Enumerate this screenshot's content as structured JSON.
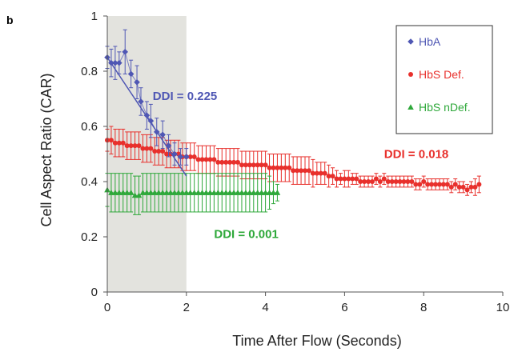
{
  "chart_data": {
    "type": "scatter",
    "panel_label": "b",
    "title": "",
    "xlabel": "Time After Flow (Seconds)",
    "ylabel": "Cell Aspect Ratio (CAR)",
    "xlim": [
      0,
      10
    ],
    "ylim": [
      0,
      1
    ],
    "xticks": [
      "0",
      "2",
      "4",
      "6",
      "8",
      "10"
    ],
    "yticks": [
      "0",
      "0.2",
      "0.4",
      "0.6",
      "0.8",
      "1"
    ],
    "shaded_region": {
      "x": [
        0,
        2
      ],
      "color": "#e3e3de"
    },
    "grid": false,
    "legend_position": "top-right",
    "series": [
      {
        "name": "HbA",
        "marker": "diamond",
        "color": "#4f57b4",
        "x": [
          0.0,
          0.1,
          0.2,
          0.3,
          0.45,
          0.6,
          0.75,
          0.85,
          1.0,
          1.1,
          1.25,
          1.4,
          1.55,
          1.7,
          1.85,
          2.0
        ],
        "y": [
          0.85,
          0.83,
          0.83,
          0.83,
          0.87,
          0.79,
          0.76,
          0.69,
          0.64,
          0.62,
          0.58,
          0.57,
          0.53,
          0.5,
          0.49,
          0.49
        ],
        "err": [
          0.04,
          0.05,
          0.06,
          0.04,
          0.08,
          0.05,
          0.06,
          0.05,
          0.05,
          0.06,
          0.05,
          0.05,
          0.04,
          0.04,
          0.03,
          0.03
        ],
        "fit": {
          "x": [
            0.0,
            2.0
          ],
          "y": [
            0.85,
            0.42
          ]
        },
        "annotation": "DDI = 0.225"
      },
      {
        "name": "HbS Def.",
        "marker": "circle",
        "color": "#e8302c",
        "x": [
          0.0,
          0.1,
          0.2,
          0.3,
          0.4,
          0.5,
          0.6,
          0.7,
          0.8,
          0.9,
          1.0,
          1.1,
          1.2,
          1.3,
          1.4,
          1.5,
          1.6,
          1.7,
          1.8,
          1.9,
          2.0,
          2.1,
          2.2,
          2.3,
          2.4,
          2.5,
          2.6,
          2.7,
          2.8,
          2.9,
          3.0,
          3.1,
          3.2,
          3.3,
          3.4,
          3.5,
          3.6,
          3.7,
          3.8,
          3.9,
          4.0,
          4.1,
          4.2,
          4.3,
          4.4,
          4.5,
          4.6,
          4.7,
          4.8,
          4.9,
          5.0,
          5.1,
          5.2,
          5.3,
          5.4,
          5.5,
          5.6,
          5.7,
          5.8,
          5.9,
          6.0,
          6.1,
          6.2,
          6.3,
          6.4,
          6.5,
          6.6,
          6.7,
          6.8,
          6.9,
          7.0,
          7.1,
          7.2,
          7.3,
          7.4,
          7.5,
          7.6,
          7.7,
          7.8,
          7.9,
          8.0,
          8.1,
          8.2,
          8.3,
          8.4,
          8.5,
          8.6,
          8.7,
          8.8,
          8.9,
          9.0,
          9.1,
          9.2,
          9.3,
          9.4
        ],
        "y": [
          0.55,
          0.55,
          0.54,
          0.54,
          0.54,
          0.53,
          0.53,
          0.53,
          0.53,
          0.52,
          0.52,
          0.52,
          0.51,
          0.51,
          0.51,
          0.5,
          0.5,
          0.5,
          0.5,
          0.49,
          0.49,
          0.49,
          0.49,
          0.48,
          0.48,
          0.48,
          0.48,
          0.48,
          0.47,
          0.47,
          0.47,
          0.47,
          0.47,
          0.47,
          0.46,
          0.46,
          0.46,
          0.46,
          0.46,
          0.46,
          0.46,
          0.45,
          0.45,
          0.45,
          0.45,
          0.45,
          0.45,
          0.44,
          0.44,
          0.44,
          0.44,
          0.44,
          0.43,
          0.43,
          0.43,
          0.43,
          0.42,
          0.42,
          0.41,
          0.41,
          0.41,
          0.41,
          0.41,
          0.41,
          0.4,
          0.4,
          0.4,
          0.4,
          0.41,
          0.4,
          0.41,
          0.4,
          0.4,
          0.4,
          0.4,
          0.4,
          0.4,
          0.4,
          0.39,
          0.39,
          0.4,
          0.39,
          0.39,
          0.39,
          0.39,
          0.39,
          0.39,
          0.38,
          0.39,
          0.38,
          0.38,
          0.37,
          0.38,
          0.38,
          0.39
        ],
        "err": [
          0.04,
          0.05,
          0.05,
          0.05,
          0.05,
          0.05,
          0.05,
          0.05,
          0.05,
          0.05,
          0.05,
          0.05,
          0.05,
          0.05,
          0.05,
          0.05,
          0.05,
          0.05,
          0.05,
          0.05,
          0.05,
          0.05,
          0.05,
          0.05,
          0.05,
          0.05,
          0.05,
          0.05,
          0.05,
          0.05,
          0.05,
          0.05,
          0.05,
          0.05,
          0.05,
          0.05,
          0.05,
          0.05,
          0.05,
          0.05,
          0.05,
          0.05,
          0.05,
          0.05,
          0.05,
          0.05,
          0.05,
          0.05,
          0.05,
          0.05,
          0.05,
          0.05,
          0.05,
          0.04,
          0.04,
          0.04,
          0.04,
          0.03,
          0.03,
          0.02,
          0.03,
          0.03,
          0.02,
          0.02,
          0.02,
          0.02,
          0.02,
          0.02,
          0.02,
          0.02,
          0.02,
          0.02,
          0.02,
          0.02,
          0.02,
          0.02,
          0.02,
          0.02,
          0.02,
          0.02,
          0.02,
          0.02,
          0.02,
          0.02,
          0.02,
          0.02,
          0.02,
          0.02,
          0.02,
          0.02,
          0.02,
          0.02,
          0.02,
          0.03,
          0.03
        ],
        "annotation": "DDI = 0.018"
      },
      {
        "name": "HbS nDef.",
        "marker": "triangle",
        "color": "#2ea83a",
        "x": [
          0.0,
          0.1,
          0.2,
          0.3,
          0.4,
          0.5,
          0.6,
          0.7,
          0.8,
          0.9,
          1.0,
          1.1,
          1.2,
          1.3,
          1.4,
          1.5,
          1.6,
          1.7,
          1.8,
          1.9,
          2.0,
          2.1,
          2.2,
          2.3,
          2.4,
          2.5,
          2.6,
          2.7,
          2.8,
          2.9,
          3.0,
          3.1,
          3.2,
          3.3,
          3.4,
          3.5,
          3.6,
          3.7,
          3.8,
          3.9,
          4.0,
          4.1,
          4.2,
          4.3
        ],
        "y": [
          0.37,
          0.36,
          0.36,
          0.36,
          0.36,
          0.36,
          0.36,
          0.35,
          0.35,
          0.36,
          0.36,
          0.36,
          0.36,
          0.36,
          0.36,
          0.36,
          0.36,
          0.36,
          0.36,
          0.36,
          0.36,
          0.36,
          0.36,
          0.36,
          0.36,
          0.36,
          0.36,
          0.36,
          0.36,
          0.36,
          0.36,
          0.36,
          0.36,
          0.36,
          0.36,
          0.36,
          0.36,
          0.36,
          0.36,
          0.36,
          0.36,
          0.36,
          0.36,
          0.36
        ],
        "err": [
          0.06,
          0.07,
          0.07,
          0.07,
          0.07,
          0.07,
          0.07,
          0.07,
          0.07,
          0.07,
          0.07,
          0.07,
          0.07,
          0.07,
          0.07,
          0.07,
          0.07,
          0.07,
          0.07,
          0.07,
          0.07,
          0.07,
          0.07,
          0.07,
          0.07,
          0.07,
          0.07,
          0.07,
          0.07,
          0.07,
          0.07,
          0.07,
          0.07,
          0.07,
          0.07,
          0.07,
          0.07,
          0.07,
          0.07,
          0.07,
          0.07,
          0.06,
          0.04,
          0.03
        ],
        "annotation": "DDI = 0.001"
      }
    ]
  }
}
